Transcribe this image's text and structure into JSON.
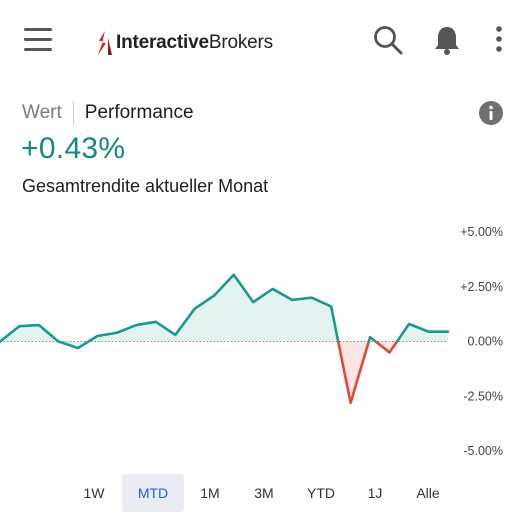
{
  "header": {
    "logo_bold": "Interactive",
    "logo_regular": "Brokers",
    "icons": [
      "menu-icon",
      "search-icon",
      "bell-icon",
      "more-vertical-icon"
    ]
  },
  "tabs": {
    "inactive": "Wert",
    "active": "Performance"
  },
  "summary": {
    "value": "+0.43%",
    "caption": "Gesamtrendite aktueller Monat",
    "value_color": "#14897e"
  },
  "colors": {
    "positive": "#1a9a8c",
    "negative": "#e5473b",
    "fill_positive": "#e3f3f0",
    "fill_negative": "#fbe6e4",
    "active_period": "#1f66c9"
  },
  "periods": [
    "1W",
    "MTD",
    "1M",
    "3M",
    "YTD",
    "1J",
    "Alle"
  ],
  "selected_period": "MTD",
  "chart_data": {
    "type": "line",
    "yticks": [
      "+5.00%",
      "+2.50%",
      "0.00%",
      "-2.50%",
      "-5.00%"
    ],
    "ylim": [
      -5,
      5
    ],
    "grid": false,
    "values": [
      0.0,
      0.7,
      0.75,
      0.0,
      -0.3,
      0.25,
      0.4,
      0.75,
      0.9,
      0.3,
      1.5,
      2.1,
      3.05,
      1.8,
      2.4,
      1.9,
      2.0,
      1.6,
      -2.8,
      0.2,
      -0.5,
      0.8,
      0.45,
      0.45
    ]
  }
}
